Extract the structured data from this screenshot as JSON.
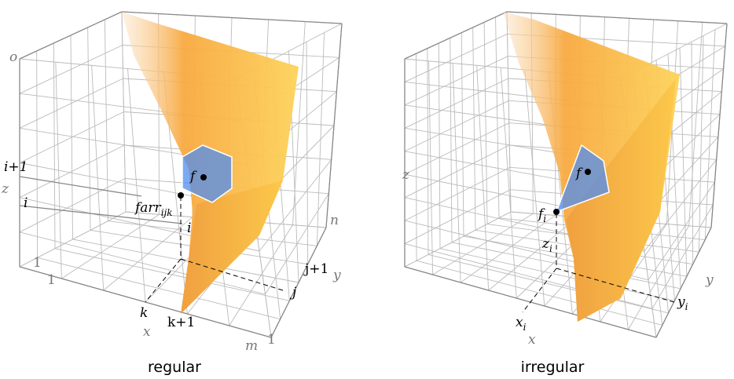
{
  "left": {
    "labels": [
      "o",
      "i+1",
      "z",
      "i",
      "1",
      "1",
      "k",
      "x",
      "k+1",
      "m",
      "1",
      "j",
      "j+1",
      "y",
      "n",
      "f",
      "i"
    ],
    "sub_labels": [
      {
        "base": "farr",
        "sub": "ijk"
      }
    ],
    "caption": "regular"
  },
  "right": {
    "labels": [
      "z",
      "f",
      "x",
      "y"
    ],
    "sub_labels": [
      {
        "base": "f",
        "sub": "i"
      },
      {
        "base": "z",
        "sub": "i"
      },
      {
        "base": "x",
        "sub": "i"
      },
      {
        "base": "y",
        "sub": "i"
      }
    ],
    "caption": "irregular"
  }
}
